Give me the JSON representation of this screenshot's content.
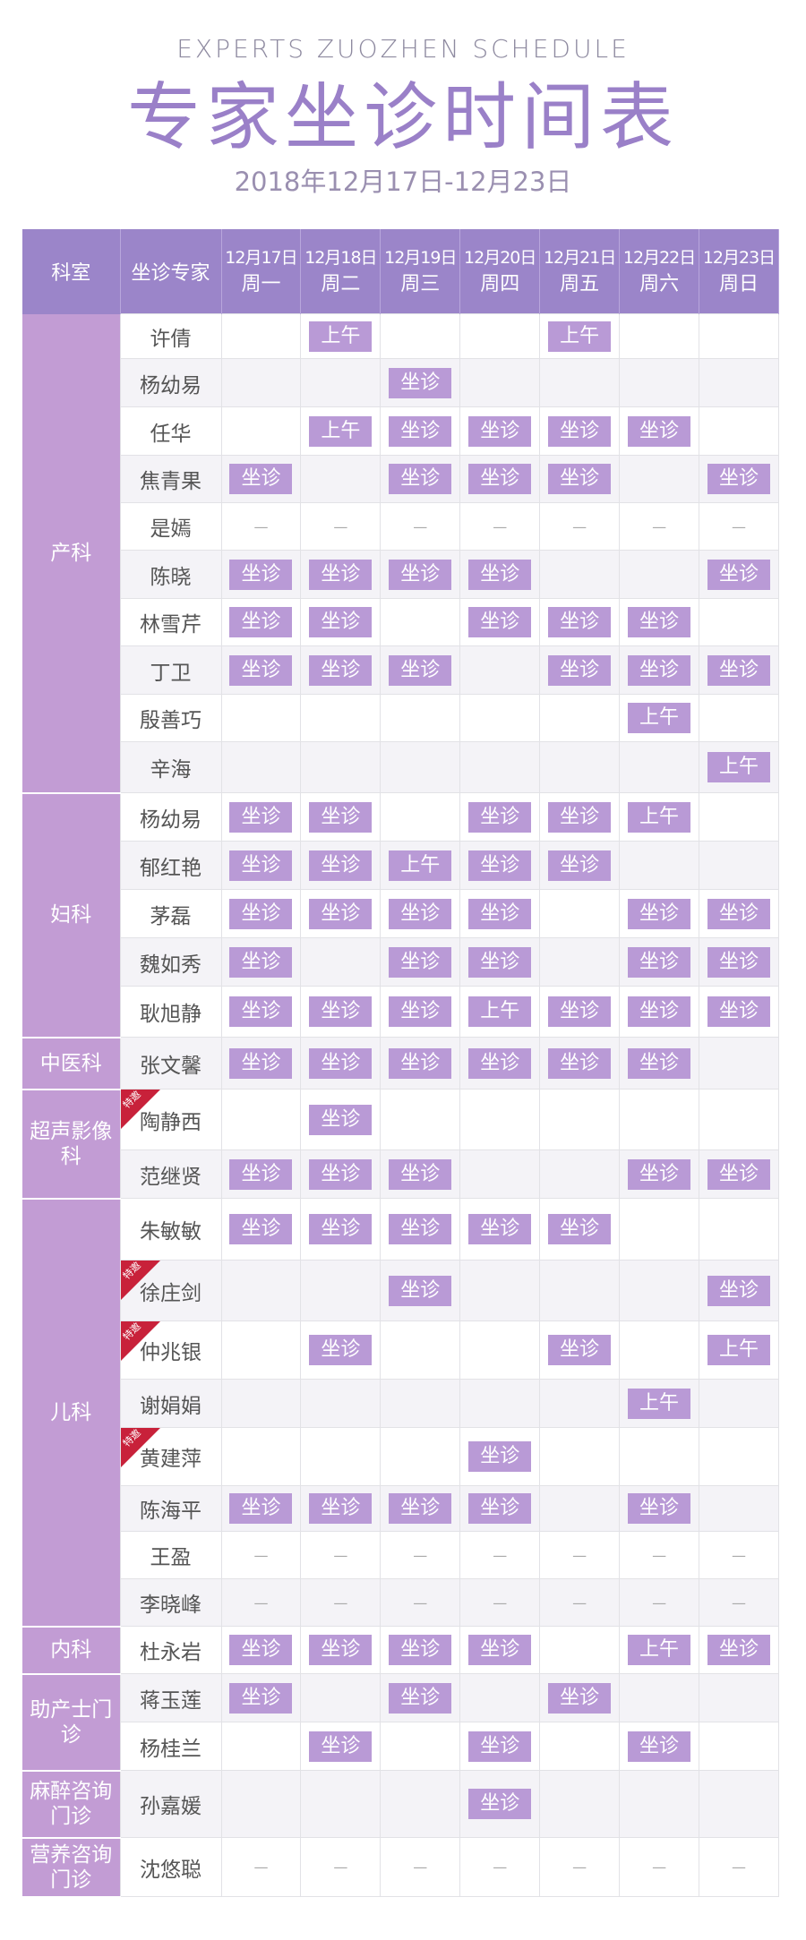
{
  "header": {
    "subtitle_en": "EXPERTS ZUOZHEN SCHEDULE",
    "title": "专家坐诊时间表",
    "date_range": "2018年12月17日-12月23日"
  },
  "table": {
    "col_dept": "科室",
    "col_expert": "坐诊专家",
    "days": [
      {
        "date": "12月17日",
        "weekday": "周一"
      },
      {
        "date": "12月18日",
        "weekday": "周二"
      },
      {
        "date": "12月19日",
        "weekday": "周三"
      },
      {
        "date": "12月20日",
        "weekday": "周四"
      },
      {
        "date": "12月21日",
        "weekday": "周五"
      },
      {
        "date": "12月22日",
        "weekday": "周六"
      },
      {
        "date": "12月23日",
        "weekday": "周日"
      }
    ],
    "labels": {
      "S": "坐诊",
      "A": "上午",
      "D": "—",
      "special": "特邀"
    },
    "departments": [
      {
        "name": "产科",
        "experts": [
          {
            "name": "许倩",
            "s": [
              "",
              "A",
              "",
              "",
              "A",
              "",
              ""
            ]
          },
          {
            "name": "杨幼易",
            "s": [
              "",
              "",
              "S",
              "",
              "",
              "",
              ""
            ]
          },
          {
            "name": "任华",
            "s": [
              "",
              "A",
              "S",
              "S",
              "S",
              "S",
              ""
            ]
          },
          {
            "name": "焦青果",
            "s": [
              "S",
              "",
              "S",
              "S",
              "S",
              "",
              "S"
            ]
          },
          {
            "name": "是嫣",
            "s": [
              "D",
              "D",
              "D",
              "D",
              "D",
              "D",
              "D"
            ]
          },
          {
            "name": "陈晓",
            "s": [
              "S",
              "S",
              "S",
              "S",
              "",
              "",
              "S"
            ]
          },
          {
            "name": "林雪芹",
            "s": [
              "S",
              "S",
              "",
              "S",
              "S",
              "S",
              ""
            ]
          },
          {
            "name": "丁卫",
            "s": [
              "S",
              "S",
              "S",
              "",
              "S",
              "S",
              "S"
            ]
          },
          {
            "name": "殷善巧",
            "s": [
              "",
              "",
              "",
              "",
              "",
              "A",
              ""
            ]
          },
          {
            "name": "辛海",
            "s": [
              "",
              "",
              "",
              "",
              "",
              "",
              "A"
            ]
          }
        ]
      },
      {
        "name": "妇科",
        "experts": [
          {
            "name": "杨幼易",
            "s": [
              "S",
              "S",
              "",
              "S",
              "S",
              "A",
              ""
            ]
          },
          {
            "name": "郁红艳",
            "s": [
              "S",
              "S",
              "A",
              "S",
              "S",
              "",
              ""
            ]
          },
          {
            "name": "茅磊",
            "s": [
              "S",
              "S",
              "S",
              "S",
              "",
              "S",
              "S"
            ]
          },
          {
            "name": "魏如秀",
            "s": [
              "S",
              "",
              "S",
              "S",
              "",
              "S",
              "S"
            ]
          },
          {
            "name": "耿旭静",
            "s": [
              "S",
              "S",
              "S",
              "A",
              "S",
              "S",
              "S"
            ]
          }
        ]
      },
      {
        "name": "中医科",
        "experts": [
          {
            "name": "张文馨",
            "s": [
              "S",
              "S",
              "S",
              "S",
              "S",
              "S",
              ""
            ]
          }
        ]
      },
      {
        "name": "超声影像科",
        "experts": [
          {
            "name": "陶静西",
            "special": true,
            "s": [
              "",
              "S",
              "",
              "",
              "",
              "",
              ""
            ]
          },
          {
            "name": "范继贤",
            "s": [
              "S",
              "S",
              "S",
              "",
              "",
              "S",
              "S"
            ]
          }
        ]
      },
      {
        "name": "儿科",
        "experts": [
          {
            "name": "朱敏敏",
            "s": [
              "S",
              "S",
              "S",
              "S",
              "S",
              "",
              ""
            ]
          },
          {
            "name": "徐庄剑",
            "special": true,
            "s": [
              "",
              "",
              "S",
              "",
              "",
              "",
              "S"
            ]
          },
          {
            "name": "仲兆银",
            "special": true,
            "s": [
              "",
              "S",
              "",
              "",
              "S",
              "",
              "A"
            ]
          },
          {
            "name": "谢娟娟",
            "s": [
              "",
              "",
              "",
              "",
              "",
              "A",
              ""
            ]
          },
          {
            "name": "黄建萍",
            "special": true,
            "s": [
              "",
              "",
              "",
              "S",
              "",
              "",
              ""
            ]
          },
          {
            "name": "陈海平",
            "s": [
              "S",
              "S",
              "S",
              "S",
              "",
              "S",
              ""
            ]
          },
          {
            "name": "王盈",
            "s": [
              "D",
              "D",
              "D",
              "D",
              "D",
              "D",
              "D"
            ]
          },
          {
            "name": "李晓峰",
            "s": [
              "D",
              "D",
              "D",
              "D",
              "D",
              "D",
              "D"
            ]
          }
        ]
      },
      {
        "name": "内科",
        "experts": [
          {
            "name": "杜永岩",
            "s": [
              "S",
              "S",
              "S",
              "S",
              "",
              "A",
              "S"
            ]
          }
        ]
      },
      {
        "name": "助产士门诊",
        "experts": [
          {
            "name": "蒋玉莲",
            "s": [
              "S",
              "",
              "S",
              "",
              "S",
              "",
              ""
            ]
          },
          {
            "name": "杨桂兰",
            "s": [
              "",
              "S",
              "",
              "S",
              "",
              "S",
              ""
            ]
          }
        ]
      },
      {
        "name": "麻醉咨询门诊",
        "experts": [
          {
            "name": "孙嘉媛",
            "s": [
              "",
              "",
              "",
              "S",
              "",
              "",
              ""
            ]
          }
        ]
      },
      {
        "name": "营养咨询门诊",
        "experts": [
          {
            "name": "沈悠聪",
            "s": [
              "D",
              "D",
              "D",
              "D",
              "D",
              "D",
              "D"
            ]
          }
        ]
      }
    ]
  },
  "colors": {
    "header": "#9b85c9",
    "dept": "#c29cd4",
    "badge": "#b99ad6",
    "title": "#9a80c8",
    "special_tag": "#c8213a"
  }
}
